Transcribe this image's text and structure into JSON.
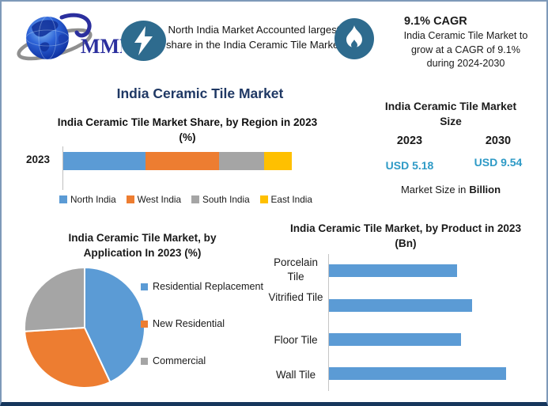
{
  "header": {
    "logo_text": "MMR",
    "highlight_share": {
      "text": "North India Market Accounted largest share in the India Ceramic Tile Market"
    },
    "highlight_cagr": {
      "title": "9.1% CAGR",
      "line1": "India Ceramic Tile Market to",
      "line2": "grow at a CAGR of 9.1%",
      "line3": "during 2024-2030"
    }
  },
  "main_title": "India Ceramic Tile Market",
  "market_size": {
    "title_line1": "India Ceramic Tile Market",
    "title_line2": "Size",
    "year_left": "2023",
    "year_right": "2030",
    "value_left": "USD 5.18",
    "value_right": "USD 9.54",
    "caption_prefix": "Market Size in",
    "caption_bold": "Billion"
  },
  "colors": {
    "icon_circle": "#2E6B8E",
    "navy": "#1F3864",
    "value_blue": "#2E9AC6",
    "bar_blue": "#5B9BD5",
    "bar_orange": "#ED7D31",
    "bar_gray": "#A5A5A5",
    "bar_yellow": "#FFC000",
    "logo_blue": "#2B2F9E"
  },
  "chart_data": [
    {
      "id": "region_share",
      "type": "bar",
      "stacked": true,
      "orientation": "horizontal",
      "title": "India Ceramic Tile Market Share, by Region in 2023 (%)",
      "categories": [
        "2023"
      ],
      "series": [
        {
          "name": "North India",
          "color": "#5B9BD5",
          "values": [
            36
          ]
        },
        {
          "name": "West India",
          "color": "#ED7D31",
          "values": [
            32
          ]
        },
        {
          "name": "South India",
          "color": "#A5A5A5",
          "values": [
            20
          ]
        },
        {
          "name": "East India",
          "color": "#FFC000",
          "values": [
            12
          ]
        }
      ],
      "xlim": [
        0,
        100
      ],
      "legend_position": "bottom"
    },
    {
      "id": "application_share",
      "type": "pie",
      "title": "India Ceramic Tile Market, by Application In 2023 (%)",
      "labels": [
        "Residential Replacement",
        "New Residential",
        "Commercial"
      ],
      "values": [
        43,
        31,
        26
      ],
      "colors": [
        "#5B9BD5",
        "#ED7D31",
        "#A5A5A5"
      ],
      "start_angle_deg": 0,
      "legend_position": "right"
    },
    {
      "id": "product_size",
      "type": "bar",
      "orientation": "horizontal",
      "title": "India Ceramic Tile Market, by Product in 2023 (Bn)",
      "categories": [
        "Porcelain Tile",
        "Vitrified Tile",
        "Floor Tile",
        "Wall Tile"
      ],
      "values": [
        1.14,
        1.28,
        1.18,
        1.58
      ],
      "xlim": [
        0,
        1.75
      ],
      "bar_color": "#5B9BD5"
    }
  ]
}
